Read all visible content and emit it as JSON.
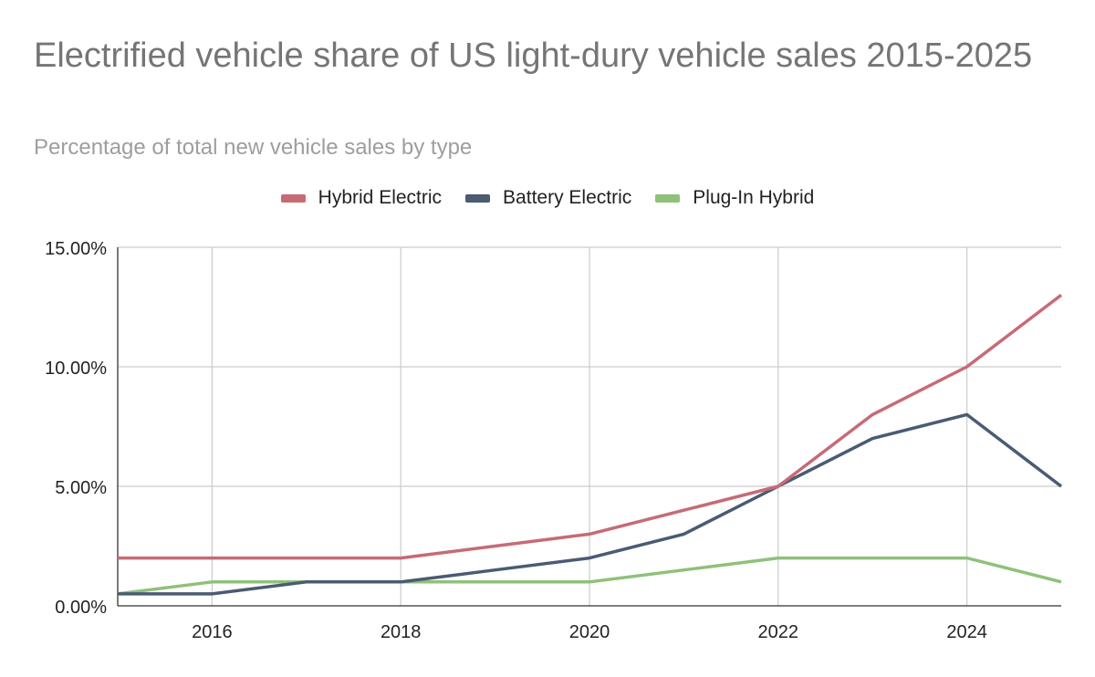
{
  "chart_data": {
    "type": "line",
    "title": "Electrified vehicle share of US light-dury vehicle sales 2015-2025",
    "subtitle": "Percentage of total new vehicle sales by type",
    "xlabel": "",
    "ylabel": "",
    "x": [
      2015,
      2016,
      2017,
      2018,
      2019,
      2020,
      2021,
      2022,
      2023,
      2024,
      2025
    ],
    "x_ticks": [
      2016,
      2018,
      2020,
      2022,
      2024
    ],
    "x_tick_labels": [
      "2016",
      "2018",
      "2020",
      "2022",
      "2024"
    ],
    "xlim": [
      2015,
      2025
    ],
    "ylim": [
      0,
      15
    ],
    "y_ticks": [
      0,
      5,
      10,
      15
    ],
    "y_tick_labels": [
      "0.00%",
      "5.00%",
      "10.00%",
      "15.00%"
    ],
    "grid": true,
    "legend_position": "top",
    "series": [
      {
        "name": "Hybrid Electric",
        "color": "#c66b76",
        "values": [
          2,
          2,
          2,
          2,
          2.5,
          3,
          4,
          5,
          8,
          10,
          13
        ]
      },
      {
        "name": "Battery Electric",
        "color": "#4a5b73",
        "values": [
          0.5,
          0.5,
          1,
          1,
          1.5,
          2,
          3,
          5,
          7,
          8,
          5
        ]
      },
      {
        "name": "Plug-In Hybrid",
        "color": "#8fc17a",
        "values": [
          0.5,
          1,
          1,
          1,
          1,
          1,
          1.5,
          2,
          2,
          2,
          1
        ]
      }
    ]
  }
}
